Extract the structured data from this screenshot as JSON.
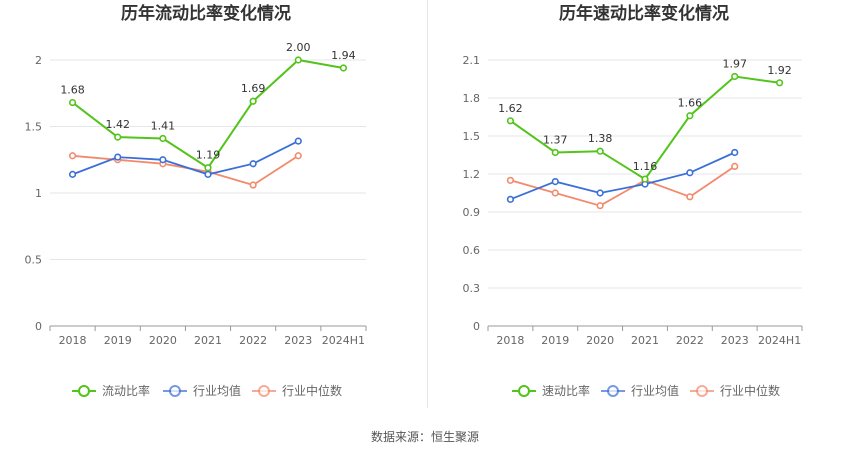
{
  "source": "数据来源：恒生聚源",
  "chart_data": [
    {
      "type": "line",
      "title": "历年流动比率变化情况",
      "categories": [
        "2018",
        "2019",
        "2020",
        "2021",
        "2022",
        "2023",
        "2024H1"
      ],
      "ylim": [
        0,
        2
      ],
      "yticks": [
        "0",
        "0.5",
        "1",
        "1.5",
        "2"
      ],
      "grid": true,
      "legend_position": "bottom",
      "series": [
        {
          "name": "流动比率",
          "color": "#52c41a",
          "values": [
            1.68,
            1.42,
            1.41,
            1.19,
            1.69,
            2.0,
            1.94
          ],
          "labels": [
            "1.68",
            "1.42",
            "1.41",
            "1.19",
            "1.69",
            "2.00",
            "1.94"
          ]
        },
        {
          "name": "行业均值",
          "color": "#3b6fd8",
          "values": [
            1.14,
            1.27,
            1.25,
            1.14,
            1.22,
            1.39,
            null
          ]
        },
        {
          "name": "行业中位数",
          "color": "#f28a6b",
          "values": [
            1.28,
            1.25,
            1.22,
            1.16,
            1.06,
            1.28,
            null
          ]
        }
      ]
    },
    {
      "type": "line",
      "title": "历年速动比率变化情况",
      "categories": [
        "2018",
        "2019",
        "2020",
        "2021",
        "2022",
        "2023",
        "2024H1"
      ],
      "ylim": [
        0,
        2.1
      ],
      "yticks": [
        "0",
        "0.3",
        "0.6",
        "0.9",
        "1.2",
        "1.5",
        "1.8",
        "2.1"
      ],
      "grid": true,
      "legend_position": "bottom",
      "series": [
        {
          "name": "速动比率",
          "color": "#52c41a",
          "values": [
            1.62,
            1.37,
            1.38,
            1.16,
            1.66,
            1.97,
            1.92
          ],
          "labels": [
            "1.62",
            "1.37",
            "1.38",
            "1.16",
            "1.66",
            "1.97",
            "1.92"
          ]
        },
        {
          "name": "行业均值",
          "color": "#3b6fd8",
          "values": [
            1.0,
            1.14,
            1.05,
            1.12,
            1.21,
            1.37,
            null
          ]
        },
        {
          "name": "行业中位数",
          "color": "#f28a6b",
          "values": [
            1.15,
            1.05,
            0.95,
            1.15,
            1.02,
            1.26,
            null
          ]
        }
      ]
    }
  ]
}
